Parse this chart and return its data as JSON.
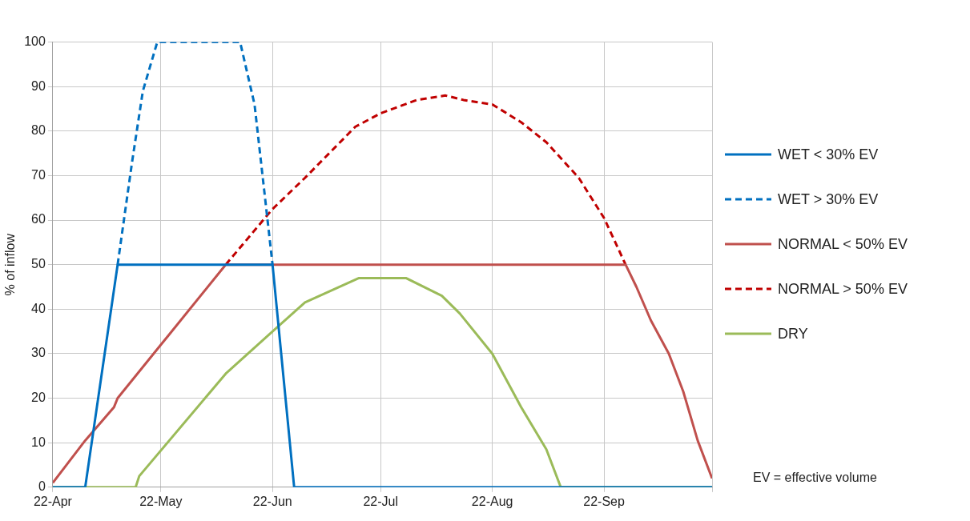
{
  "chart_data": {
    "type": "line",
    "ylabel": "% of inflow",
    "xlim": [
      "--04-22",
      "--10-22"
    ],
    "xticks": [
      {
        "value": "--04-22",
        "label": "22-Apr"
      },
      {
        "value": "--05-22",
        "label": "22-May"
      },
      {
        "value": "--06-22",
        "label": "22-Jun"
      },
      {
        "value": "--07-22",
        "label": "22-Jul"
      },
      {
        "value": "--08-22",
        "label": "22-Aug"
      },
      {
        "value": "--09-22",
        "label": "22-Sep"
      },
      {
        "value": "--10-22",
        "label": null
      }
    ],
    "ylim": [
      0,
      100
    ],
    "yticks": [
      0,
      10,
      20,
      30,
      40,
      50,
      60,
      70,
      80,
      90,
      100
    ],
    "grid": true,
    "legend": "right",
    "marker": "none",
    "annotations": [
      "EV = effective volume"
    ],
    "series": [
      {
        "name": "WET < 30% EV",
        "color": "#0070c0",
        "line_style": "solid",
        "x": [
          "--04-22",
          "--05-01",
          "--05-10",
          "--06-22",
          "--06-28",
          "--10-22"
        ],
        "values": [
          0,
          0,
          50,
          50,
          0,
          0
        ]
      },
      {
        "name": "WET > 30% EV",
        "color": "#0070c0",
        "line_style": "dashed",
        "x": [
          "--05-10",
          "--05-14",
          "--05-17",
          "--05-21",
          "--06-13",
          "--06-17",
          "--06-22"
        ],
        "values": [
          50,
          73,
          89,
          100,
          100,
          86,
          50
        ]
      },
      {
        "name": "NORMAL < 50% EV",
        "color": "#c0504d",
        "line_style": "solid",
        "x": [
          "--04-22",
          "--05-01",
          "--05-09",
          "--05-10",
          "--05-22",
          "--05-24",
          "--06-09",
          "--09-28",
          "--10-01",
          "--10-05",
          "--10-10",
          "--10-14",
          "--10-18",
          "--10-22"
        ],
        "values": [
          1,
          10.5,
          18,
          20,
          32,
          34,
          50,
          50,
          45,
          37.5,
          30,
          21.5,
          10.5,
          2
        ]
      },
      {
        "name": "NORMAL > 50% EV",
        "color": "#c00000",
        "line_style": "dashed",
        "x": [
          "--06-09",
          "--06-22",
          "--07-01",
          "--07-15",
          "--07-22",
          "--08-01",
          "--08-09",
          "--08-14",
          "--08-22",
          "--08-30",
          "--09-06",
          "--09-15",
          "--09-22",
          "--09-28"
        ],
        "values": [
          50,
          62.5,
          69.5,
          81,
          84,
          87,
          88,
          87,
          86,
          82,
          77.5,
          69.5,
          60.5,
          50
        ]
      },
      {
        "name": "DRY",
        "color": "#9bbb59",
        "line_style": "solid",
        "x": [
          "--04-22",
          "--05-15",
          "--05-16",
          "--06-09",
          "--06-22",
          "--07-01",
          "--07-16",
          "--07-29",
          "--08-08",
          "--08-13",
          "--08-22",
          "--08-30",
          "--09-06",
          "--09-10",
          "--10-22"
        ],
        "values": [
          0,
          0,
          2.5,
          25.5,
          35,
          41.5,
          47,
          47,
          43,
          39,
          30,
          18,
          8.5,
          0,
          0
        ]
      }
    ]
  }
}
